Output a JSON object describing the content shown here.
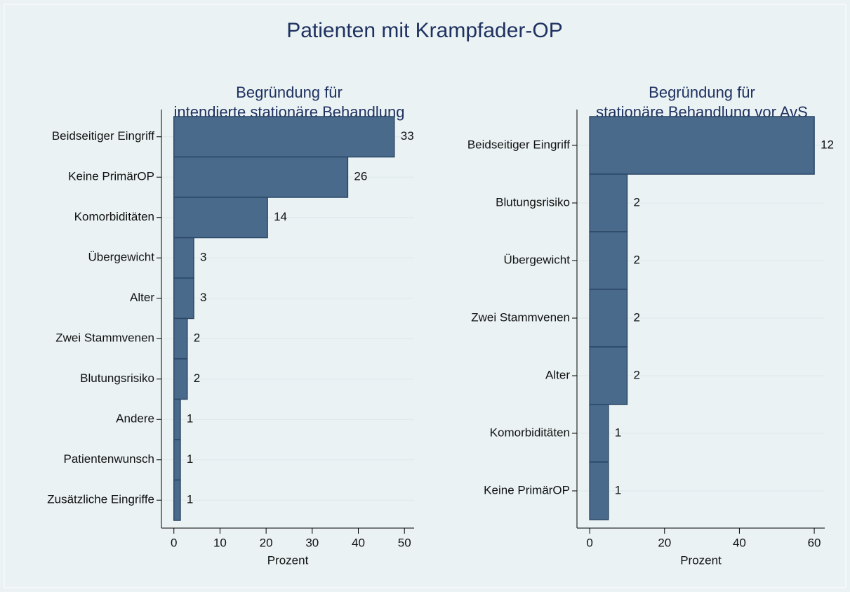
{
  "title": "Patienten mit Krampfader-OP",
  "chart_data": [
    {
      "type": "bar",
      "orientation": "horizontal",
      "title": [
        "Begründung für",
        "intendierte stationäre Behandlung"
      ],
      "categories": [
        "Beidseitiger Eingriff",
        "Keine PrimärOP",
        "Komorbiditäten",
        "Übergewicht",
        "Alter",
        "Zwei Stammvenen",
        "Blutungsrisiko",
        "Andere",
        "Patientenwunsch",
        "Zusätzliche Eingriffe"
      ],
      "values": [
        47.8,
        37.7,
        20.3,
        4.3,
        4.3,
        2.9,
        2.9,
        1.4,
        1.4,
        1.4
      ],
      "counts": [
        33,
        26,
        14,
        3,
        3,
        2,
        2,
        1,
        1,
        1
      ],
      "xlabel": "Prozent",
      "xlim": [
        -2.7,
        52.1
      ],
      "xticks": [
        0,
        10,
        20,
        30,
        40,
        50
      ],
      "grid": true,
      "color": "#4a6a8c"
    },
    {
      "type": "bar",
      "orientation": "horizontal",
      "title": [
        "Begründung für",
        "stationäre Behandlung vor AvS"
      ],
      "categories": [
        "Beidseitiger Eingriff",
        "Blutungsrisiko",
        "Übergewicht",
        "Zwei Stammvenen",
        "Alter",
        "Komorbiditäten",
        "Keine PrimärOP"
      ],
      "values": [
        60,
        10,
        10,
        10,
        10,
        5,
        5
      ],
      "counts": [
        12,
        2,
        2,
        2,
        2,
        1,
        1
      ],
      "xlabel": "Prozent",
      "xlim": [
        -3.4,
        62.8
      ],
      "xticks": [
        0,
        20,
        40,
        60
      ],
      "grid": true,
      "color": "#4a6a8c"
    }
  ]
}
